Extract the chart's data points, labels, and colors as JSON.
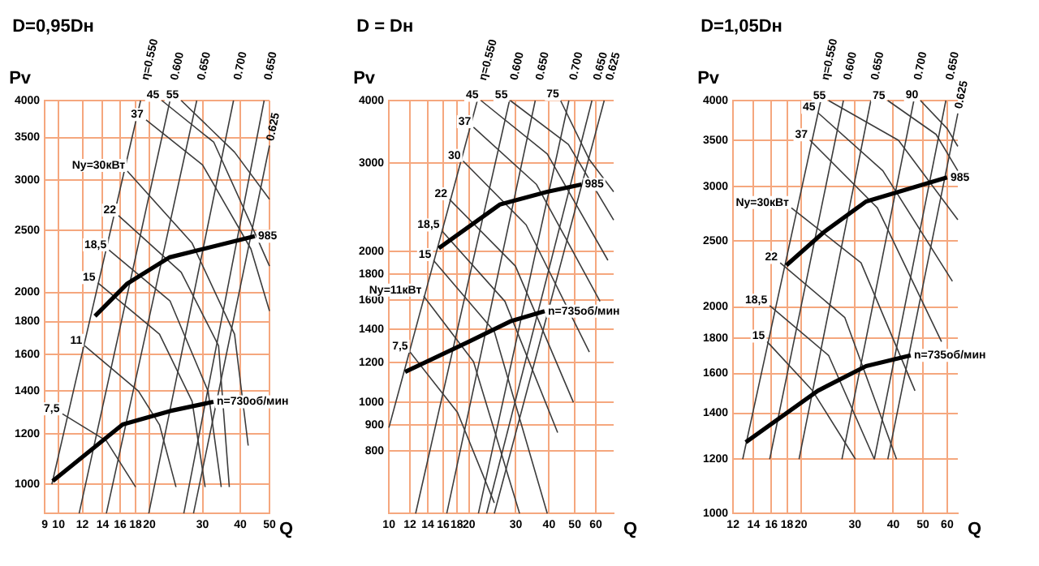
{
  "chart_data": [
    {
      "type": "line",
      "title": "D=0,95Dн",
      "xlabel": "Q",
      "ylabel": "Pv",
      "log": "xy",
      "grid": true,
      "marker": "none",
      "xlim": [
        9,
        50
      ],
      "ylim": [
        900,
        4000
      ],
      "xticks": [
        9,
        10,
        12,
        14,
        16,
        18,
        20,
        30,
        40,
        50
      ],
      "yticks": [
        1000,
        1200,
        1400,
        1600,
        1800,
        2000,
        2500,
        3000,
        3500,
        4000
      ],
      "series": [
        {
          "name": "985",
          "color": "#000000",
          "x": [
            13.2,
            16.9,
            23.3,
            44.7
          ],
          "values": [
            1836,
            2065,
            2270,
            2450
          ]
        },
        {
          "name": "n=730об/мин",
          "color": "#000000",
          "x": [
            9.56,
            16.3,
            23.4,
            32.6
          ],
          "values": [
            1012,
            1241,
            1303,
            1347
          ]
        },
        {
          "name": "7,5",
          "color": "#3c3c3c",
          "x": [
            10.3,
            14.4,
            18
          ],
          "values": [
            1290,
            1170,
            990
          ]
        },
        {
          "name": "11",
          "color": "#3c3c3c",
          "x": [
            12.2,
            18.4,
            21.6,
            24.5
          ],
          "values": [
            1650,
            1400,
            1240,
            990
          ]
        },
        {
          "name": "15",
          "color": "#3c3c3c",
          "x": [
            13.5,
            21.6,
            27.7,
            30.6
          ],
          "values": [
            2070,
            1720,
            1350,
            990
          ]
        },
        {
          "name": "18,5",
          "color": "#3c3c3c",
          "x": [
            14.7,
            23.4,
            31.3,
            34.6
          ],
          "values": [
            2330,
            1940,
            1400,
            990
          ]
        },
        {
          "name": "22",
          "color": "#3c3c3c",
          "x": [
            15.8,
            25.5,
            33.9,
            36.8
          ],
          "values": [
            2640,
            2150,
            1650,
            990
          ]
        },
        {
          "name": "Ny=30кВт",
          "color": "#3c3c3c",
          "x": [
            16.9,
            27.7,
            38.3,
            42.5
          ],
          "values": [
            3100,
            2390,
            1720,
            1150
          ]
        },
        {
          "name": "37",
          "color": "#3c3c3c",
          "x": [
            19.5,
            30,
            43.4,
            50
          ],
          "values": [
            3730,
            3170,
            2340,
            1870
          ]
        },
        {
          "name": "45",
          "color": "#3c3c3c",
          "x": [
            22,
            32.7,
            44.7,
            50
          ],
          "values": [
            4000,
            3440,
            2480,
            2200
          ]
        },
        {
          "name": "55",
          "color": "#3c3c3c",
          "x": [
            25.5,
            38.3,
            50
          ],
          "values": [
            4000,
            3320,
            2800
          ]
        },
        {
          "name": "η=0.550",
          "color": "#3c3c3c",
          "x": [
            9.5,
            18.7
          ],
          "values": [
            1000,
            4000
          ]
        },
        {
          "name": "0.600",
          "color": "#3c3c3c",
          "x": [
            11.7,
            23.4
          ],
          "values": [
            900,
            4000
          ]
        },
        {
          "name": "0.650",
          "color": "#3c3c3c",
          "x": [
            14.4,
            28.7
          ],
          "values": [
            900,
            4000
          ]
        },
        {
          "name": "0.700",
          "color": "#3c3c3c",
          "x": [
            19.9,
            38
          ],
          "values": [
            900,
            4000
          ]
        },
        {
          "name": "0.650",
          "color": "#3c3c3c",
          "x": [
            26,
            48
          ],
          "values": [
            900,
            4000
          ]
        },
        {
          "name": "0.625",
          "color": "#3c3c3c",
          "x": [
            28,
            50
          ],
          "values": [
            900,
            3400
          ]
        }
      ]
    },
    {
      "type": "line",
      "title": "D = Dн",
      "xlabel": "Q",
      "ylabel": "Pv",
      "log": "xy",
      "grid": true,
      "marker": "none",
      "xlim": [
        10,
        70
      ],
      "ylim": [
        600,
        4000
      ],
      "xticks": [
        10,
        12,
        14,
        16,
        18,
        20,
        30,
        40,
        50,
        60
      ],
      "yticks": [
        800,
        900,
        1000,
        1200,
        1400,
        1600,
        1800,
        2000,
        3000,
        4000
      ],
      "series": [
        {
          "name": "985",
          "color": "#000000",
          "x": [
            15.4,
            26.1,
            39.4,
            53
          ],
          "values": [
            2030,
            2480,
            2630,
            2720
          ]
        },
        {
          "name": "n=735об/мин",
          "color": "#000000",
          "x": [
            11.5,
            19.9,
            28.6,
            38.5
          ],
          "values": [
            1150,
            1320,
            1450,
            1520
          ]
        },
        {
          "name": "7,5",
          "color": "#3c3c3c",
          "x": [
            12,
            18.1,
            24.9
          ],
          "values": [
            1260,
            955,
            630
          ]
        },
        {
          "name": "Ny=11кВт",
          "color": "#3c3c3c",
          "x": [
            13.5,
            20.8,
            31
          ],
          "values": [
            1630,
            1205,
            600
          ]
        },
        {
          "name": "15",
          "color": "#3c3c3c",
          "x": [
            14.7,
            24.9,
            39.4
          ],
          "values": [
            1920,
            1385,
            600
          ]
        },
        {
          "name": "18,5",
          "color": "#3c3c3c",
          "x": [
            15.8,
            27.3,
            43.1
          ],
          "values": [
            2200,
            1590,
            870
          ]
        },
        {
          "name": "22",
          "color": "#3c3c3c",
          "x": [
            16.9,
            29.9,
            49.4
          ],
          "values": [
            2540,
            1870,
            1000
          ]
        },
        {
          "name": "30",
          "color": "#3c3c3c",
          "x": [
            19,
            32.8,
            56.7
          ],
          "values": [
            3030,
            2260,
            1260
          ]
        },
        {
          "name": "37",
          "color": "#3c3c3c",
          "x": [
            20.8,
            35.9,
            62.2
          ],
          "values": [
            3540,
            2720,
            1590
          ]
        },
        {
          "name": "45",
          "color": "#3c3c3c",
          "x": [
            22.2,
            39.4,
            66.6
          ],
          "values": [
            4000,
            3130,
            1920
          ]
        },
        {
          "name": "55",
          "color": "#3c3c3c",
          "x": [
            28.6,
            47.3,
            70
          ],
          "values": [
            4000,
            3270,
            2310
          ]
        },
        {
          "name": "75",
          "color": "#3c3c3c",
          "x": [
            44.2,
            56.7,
            70
          ],
          "values": [
            4000,
            3050,
            2630
          ]
        },
        {
          "name": "η=0.550",
          "color": "#3c3c3c",
          "x": [
            10,
            21.5
          ],
          "values": [
            890,
            4000
          ]
        },
        {
          "name": "0.600",
          "color": "#3c3c3c",
          "x": [
            12.6,
            28.4
          ],
          "values": [
            600,
            4000
          ]
        },
        {
          "name": "0.650",
          "color": "#3c3c3c",
          "x": [
            16.5,
            35.5
          ],
          "values": [
            600,
            4000
          ]
        },
        {
          "name": "0.700",
          "color": "#3c3c3c",
          "x": [
            21.7,
            47.5
          ],
          "values": [
            600,
            4000
          ]
        },
        {
          "name": "0.650",
          "color": "#3c3c3c",
          "x": [
            23.3,
            58
          ],
          "values": [
            600,
            4000
          ]
        },
        {
          "name": "0.625",
          "color": "#3c3c3c",
          "x": [
            24.9,
            64.5
          ],
          "values": [
            600,
            4000
          ]
        }
      ]
    },
    {
      "type": "line",
      "title": "D=1,05Dн",
      "xlabel": "Q",
      "ylabel": "Pv",
      "log": "xy",
      "grid": true,
      "marker": "none",
      "xlim": [
        12,
        65
      ],
      "ylim": [
        1000,
        4000
      ],
      "xticks": [
        12,
        14,
        16,
        18,
        20,
        30,
        40,
        50,
        60
      ],
      "yticks": [
        1000,
        1200,
        1400,
        1600,
        1800,
        2000,
        2500,
        3000,
        3500,
        4000
      ],
      "series": [
        {
          "name": "985",
          "color": "#000000",
          "x": [
            17.9,
            23.7,
            32.6,
            60
          ],
          "values": [
            2300,
            2570,
            2850,
            3090
          ]
        },
        {
          "name": "n=735об/мин",
          "color": "#000000",
          "x": [
            13.2,
            22.7,
            32.6,
            45.6
          ],
          "values": [
            1270,
            1510,
            1640,
            1700
          ]
        },
        {
          "name": "15",
          "color": "#3c3c3c",
          "x": [
            15.5,
            21.8,
            30.1
          ],
          "values": [
            1780,
            1510,
            1200
          ]
        },
        {
          "name": "18,5",
          "color": "#3c3c3c",
          "x": [
            15.8,
            24.6,
            34.7
          ],
          "values": [
            2010,
            1700,
            1200
          ]
        },
        {
          "name": "22",
          "color": "#3c3c3c",
          "x": [
            17.1,
            27.8,
            41
          ],
          "values": [
            2320,
            1930,
            1200
          ]
        },
        {
          "name": "Ny=30кВт",
          "color": "#3c3c3c",
          "x": [
            18.6,
            31.4,
            47.1
          ],
          "values": [
            2790,
            2320,
            1510
          ]
        },
        {
          "name": "37",
          "color": "#3c3c3c",
          "x": [
            21.4,
            35.5,
            57.5
          ],
          "values": [
            3500,
            2790,
            1780
          ]
        },
        {
          "name": "45",
          "color": "#3c3c3c",
          "x": [
            22.7,
            37,
            62.4
          ],
          "values": [
            3840,
            3160,
            2180
          ]
        },
        {
          "name": "55",
          "color": "#3c3c3c",
          "x": [
            24.6,
            41.6,
            65
          ],
          "values": [
            4000,
            3500,
            2680
          ]
        },
        {
          "name": "75",
          "color": "#3c3c3c",
          "x": [
            38.4,
            55.2,
            65
          ],
          "values": [
            4000,
            3570,
            3160
          ]
        },
        {
          "name": "90",
          "color": "#3c3c3c",
          "x": [
            49.1,
            60,
            65
          ],
          "values": [
            4000,
            3640,
            3430
          ]
        },
        {
          "name": "η=0.550",
          "color": "#3c3c3c",
          "x": [
            12.9,
            23.2
          ],
          "values": [
            1200,
            4000
          ]
        },
        {
          "name": "0.600",
          "color": "#3c3c3c",
          "x": [
            15.8,
            27.5
          ],
          "values": [
            1200,
            4000
          ]
        },
        {
          "name": "0.650",
          "color": "#3c3c3c",
          "x": [
            19.7,
            33.8
          ],
          "values": [
            1200,
            4000
          ]
        },
        {
          "name": "0.700",
          "color": "#3c3c3c",
          "x": [
            27.2,
            46.7
          ],
          "values": [
            1200,
            4000
          ]
        },
        {
          "name": "0.650",
          "color": "#3c3c3c",
          "x": [
            34.7,
            59.4
          ],
          "values": [
            1200,
            4000
          ]
        },
        {
          "name": "0.625",
          "color": "#3c3c3c",
          "x": [
            38.4,
            65
          ],
          "values": [
            1200,
            3830
          ]
        }
      ]
    }
  ]
}
